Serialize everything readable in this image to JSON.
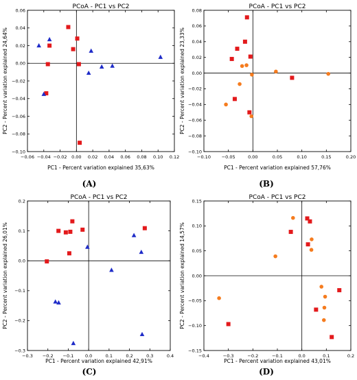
{
  "chart_data": [
    {
      "panel": "(A)",
      "type": "scatter",
      "title": "PCoA - PC1 vs PC2",
      "xlabel": "PC1 - Percent variation explained 35,63%",
      "ylabel": "PC2 - Percent variation explained 24,64%",
      "xlim": [
        -0.06,
        0.12
      ],
      "ylim": [
        -0.1,
        0.06
      ],
      "xticks": [
        -0.06,
        -0.04,
        -0.02,
        0,
        0.02,
        0.04,
        0.06,
        0.08,
        0.1,
        0.12
      ],
      "xtick_labels": [
        "−0.06",
        "−0.04",
        "−0.02",
        "0.00",
        "0.02",
        "0.04",
        "0.06",
        "0.08",
        "0.10",
        "0.12"
      ],
      "yticks": [
        -0.1,
        -0.08,
        -0.06,
        -0.04,
        -0.02,
        0,
        0.02,
        0.04,
        0.06
      ],
      "ytick_labels": [
        "−0.10",
        "−0.08",
        "−0.06",
        "−0.04",
        "−0.02",
        "0.00",
        "0.02",
        "0.04",
        "0.06"
      ],
      "grid": false,
      "series": [
        {
          "marker": "square",
          "color": "#e31a1c",
          "points": [
            [
              -0.01,
              0.041
            ],
            [
              0.001,
              0.028
            ],
            [
              -0.033,
              0.02
            ],
            [
              -0.004,
              0.016
            ],
            [
              0.003,
              -0.001
            ],
            [
              -0.035,
              -0.001
            ],
            [
              -0.037,
              -0.034
            ],
            [
              0.004,
              -0.09
            ]
          ]
        },
        {
          "marker": "triangle",
          "color": "#1f2cc8",
          "points": [
            [
              -0.046,
              0.02
            ],
            [
              -0.033,
              0.027
            ],
            [
              0.018,
              0.014
            ],
            [
              -0.04,
              -0.035
            ],
            [
              0.015,
              -0.011
            ],
            [
              0.031,
              -0.004
            ],
            [
              0.044,
              -0.003
            ],
            [
              0.103,
              0.007
            ]
          ]
        }
      ]
    },
    {
      "panel": "(B)",
      "type": "scatter",
      "title": "PCoA - PC1 vs PC2",
      "xlabel": "PC1 - Percent variation explained 57,76%",
      "ylabel": "PC2 - Percent variation explained 23,33%",
      "xlim": [
        -0.1,
        0.2
      ],
      "ylim": [
        -0.1,
        0.08
      ],
      "xticks": [
        -0.1,
        -0.05,
        0,
        0.05,
        0.1,
        0.15,
        0.2
      ],
      "xtick_labels": [
        "−0.10",
        "−0.05",
        "0.00",
        "0.05",
        "0.10",
        "0.15",
        "0.20"
      ],
      "yticks": [
        -0.1,
        -0.08,
        -0.06,
        -0.04,
        -0.02,
        0,
        0.02,
        0.04,
        0.06,
        0.08
      ],
      "ytick_labels": [
        "−0.10",
        "−0.08",
        "−0.06",
        "−0.04",
        "−0.02",
        "0.00",
        "0.02",
        "0.04",
        "0.06",
        "0.08"
      ],
      "grid": false,
      "series": [
        {
          "marker": "square",
          "color": "#e31a1c",
          "points": [
            [
              -0.012,
              0.071
            ],
            [
              -0.016,
              0.04
            ],
            [
              -0.032,
              0.031
            ],
            [
              -0.043,
              0.018
            ],
            [
              -0.005,
              0.021
            ],
            [
              0.08,
              -0.006
            ],
            [
              -0.037,
              -0.033
            ],
            [
              -0.007,
              -0.05
            ]
          ]
        },
        {
          "marker": "circle",
          "color": "#f57c1f",
          "points": [
            [
              -0.022,
              0.009
            ],
            [
              -0.013,
              0.01
            ],
            [
              -0.002,
              -0.002
            ],
            [
              -0.027,
              -0.014
            ],
            [
              -0.055,
              -0.04
            ],
            [
              -0.003,
              -0.055
            ],
            [
              0.047,
              0.002
            ],
            [
              0.154,
              -0.001
            ]
          ]
        }
      ]
    },
    {
      "panel": "(C)",
      "type": "scatter",
      "title": "PCoA - PC1 vs PC2",
      "xlabel": "PC1 - Percent variation explained 42,91%",
      "ylabel": "PC2 - Percent variation explained 26,01%",
      "xlim": [
        -0.3,
        0.4
      ],
      "ylim": [
        -0.3,
        0.2
      ],
      "xticks": [
        -0.3,
        -0.2,
        -0.1,
        0,
        0.1,
        0.2,
        0.3,
        0.4
      ],
      "xtick_labels": [
        "−0.3",
        "−0.2",
        "−0.1",
        "0.0",
        "0.1",
        "0.2",
        "0.3",
        "0.4"
      ],
      "yticks": [
        -0.3,
        -0.2,
        -0.1,
        0,
        0.1,
        0.2
      ],
      "ytick_labels": [
        "−0.3",
        "−0.2",
        "−0.1",
        "0.0",
        "0.1",
        "0.2"
      ],
      "grid": false,
      "series": [
        {
          "marker": "square",
          "color": "#e31a1c",
          "points": [
            [
              -0.08,
              0.132
            ],
            [
              -0.148,
              0.1
            ],
            [
              -0.112,
              0.095
            ],
            [
              -0.09,
              0.097
            ],
            [
              -0.03,
              0.104
            ],
            [
              -0.095,
              0.025
            ],
            [
              -0.205,
              -0.002
            ],
            [
              0.275,
              0.109
            ]
          ]
        },
        {
          "marker": "triangle",
          "color": "#1f2cc8",
          "points": [
            [
              -0.006,
              0.046
            ],
            [
              0.222,
              0.085
            ],
            [
              0.258,
              0.029
            ],
            [
              0.112,
              -0.031
            ],
            [
              -0.163,
              -0.137
            ],
            [
              -0.147,
              -0.14
            ],
            [
              -0.075,
              -0.276
            ],
            [
              0.262,
              -0.246
            ]
          ]
        }
      ]
    },
    {
      "panel": "(D)",
      "type": "scatter",
      "title": "PCoA - PC1 vs PC2",
      "xlabel": "PC1 - Percent variation explained 43,01%",
      "ylabel": "PC2 - Percent variation explained 14,57%",
      "xlim": [
        -0.4,
        0.2
      ],
      "ylim": [
        -0.15,
        0.15
      ],
      "xticks": [
        -0.4,
        -0.3,
        -0.2,
        -0.1,
        0,
        0.1,
        0.2
      ],
      "xtick_labels": [
        "−0.4",
        "−0.3",
        "−0.2",
        "−0.1",
        "0.0",
        "0.1",
        "0.2"
      ],
      "yticks": [
        -0.15,
        -0.1,
        -0.05,
        0,
        0.05,
        0.1,
        0.15
      ],
      "ytick_labels": [
        "−0.15",
        "−0.10",
        "−0.05",
        "0.00",
        "0.05",
        "0.10",
        "0.15"
      ],
      "grid": false,
      "series": [
        {
          "marker": "square",
          "color": "#e31a1c",
          "points": [
            [
              0.022,
              0.115
            ],
            [
              0.033,
              0.109
            ],
            [
              -0.045,
              0.088
            ],
            [
              0.025,
              0.063
            ],
            [
              0.058,
              -0.068
            ],
            [
              0.153,
              -0.029
            ],
            [
              0.122,
              -0.123
            ],
            [
              -0.3,
              -0.097
            ]
          ]
        },
        {
          "marker": "circle",
          "color": "#f57c1f",
          "points": [
            [
              -0.036,
              0.116
            ],
            [
              0.04,
              0.073
            ],
            [
              0.039,
              0.052
            ],
            [
              -0.108,
              0.039
            ],
            [
              0.08,
              -0.022
            ],
            [
              0.095,
              -0.042
            ],
            [
              0.092,
              -0.064
            ],
            [
              0.09,
              -0.089
            ],
            [
              -0.338,
              -0.045
            ]
          ]
        }
      ]
    }
  ]
}
